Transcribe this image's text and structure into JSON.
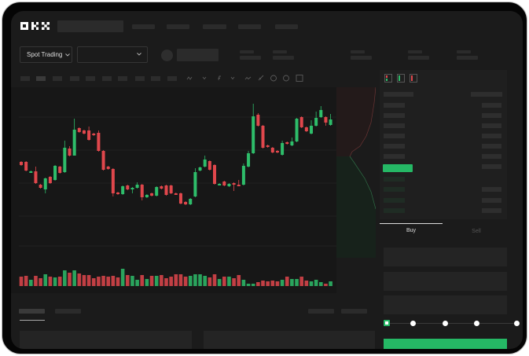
{
  "header": {
    "logo": "OKX"
  },
  "market": {
    "mode_label": "Spot Trading",
    "pair_select_value": ""
  },
  "trade": {
    "tabs": [
      {
        "label": "Buy",
        "active": true
      },
      {
        "label": "Sell",
        "active": false
      }
    ],
    "leverage_steps": 5,
    "leverage_selected_step": 0
  },
  "colors": {
    "up": "#2ebd6a",
    "down": "#e0474c",
    "background": "#1b1b1b",
    "accent": "#25b865"
  },
  "icons": [
    "okx-logo",
    "chevron-down-icon",
    "indicator-icon",
    "line-tool-icon",
    "ruler-icon",
    "camera-icon",
    "settings-icon",
    "fullscreen-icon",
    "orderbook-both-icon",
    "orderbook-bids-icon",
    "orderbook-asks-icon"
  ],
  "chart_data": {
    "type": "candlestick",
    "title": "",
    "xlabel": "",
    "ylabel": "",
    "grid": true,
    "ohlc_format": [
      "open",
      "close",
      "high",
      "low"
    ],
    "candles": [
      [
        167,
        163
      ],
      [
        167,
        156
      ],
      [
        154,
        155
      ],
      [
        155,
        140,
        161,
        139
      ],
      [
        138,
        134
      ],
      [
        132,
        146,
        147,
        127
      ],
      [
        148,
        140
      ],
      [
        144,
        162
      ],
      [
        161,
        153
      ],
      [
        154,
        185,
        194,
        153
      ],
      [
        184,
        175,
        187,
        174
      ],
      [
        175,
        208,
        222,
        175
      ],
      [
        210,
        205
      ],
      [
        207,
        203
      ],
      [
        207,
        195,
        212,
        194
      ],
      [
        203,
        201
      ],
      [
        204,
        181,
        207,
        180
      ],
      [
        181,
        157
      ],
      [
        161,
        158
      ],
      [
        158,
        127,
        159,
        123
      ],
      [
        128,
        126
      ],
      [
        126,
        136
      ],
      [
        137,
        132
      ],
      [
        133,
        134,
        135,
        127
      ],
      [
        134,
        138,
        141,
        133
      ],
      [
        138,
        122,
        139,
        118
      ],
      [
        122,
        125
      ],
      [
        127,
        124
      ],
      [
        124,
        135
      ],
      [
        136,
        133
      ],
      [
        137,
        125
      ],
      [
        137,
        127
      ],
      [
        127,
        126
      ],
      [
        127,
        114
      ],
      [
        116,
        113
      ],
      [
        113,
        120
      ],
      [
        123,
        154,
        159,
        122
      ],
      [
        156,
        160
      ],
      [
        161,
        170,
        175,
        160
      ],
      [
        168,
        157
      ],
      [
        163,
        139
      ],
      [
        138,
        139
      ],
      [
        142,
        137
      ],
      [
        136,
        139
      ],
      [
        140,
        139,
        141,
        130
      ],
      [
        138,
        137,
        144,
        136
      ],
      [
        138,
        162,
        165,
        137
      ],
      [
        161,
        178,
        181,
        160
      ],
      [
        178,
        225,
        241,
        177
      ],
      [
        227,
        213,
        229,
        212
      ],
      [
        213,
        185
      ],
      [
        188,
        186
      ],
      [
        185,
        179
      ],
      [
        181,
        179
      ],
      [
        176,
        191,
        194,
        175
      ],
      [
        192,
        190
      ],
      [
        188,
        193,
        198,
        187
      ],
      [
        193,
        222
      ],
      [
        224,
        211
      ],
      [
        211,
        206
      ],
      [
        203,
        213,
        220,
        202
      ],
      [
        213,
        223,
        231,
        212
      ],
      [
        224,
        233,
        238,
        223
      ],
      [
        224,
        217,
        225,
        213
      ],
      [
        214,
        221,
        228,
        213
      ]
    ],
    "volume": [
      12,
      13,
      8,
      13,
      10,
      15,
      12,
      11,
      12,
      20,
      17,
      20,
      16,
      14,
      14,
      10,
      12,
      13,
      12,
      13,
      11,
      22,
      14,
      13,
      8,
      14,
      9,
      13,
      13,
      14,
      10,
      12,
      15,
      15,
      12,
      13,
      15,
      15,
      13,
      11,
      15,
      9,
      12,
      12,
      10,
      14,
      8,
      3,
      3,
      5,
      7,
      6,
      7,
      6,
      8,
      12,
      9,
      9,
      12,
      7,
      6,
      8,
      5,
      3,
      6
    ]
  }
}
